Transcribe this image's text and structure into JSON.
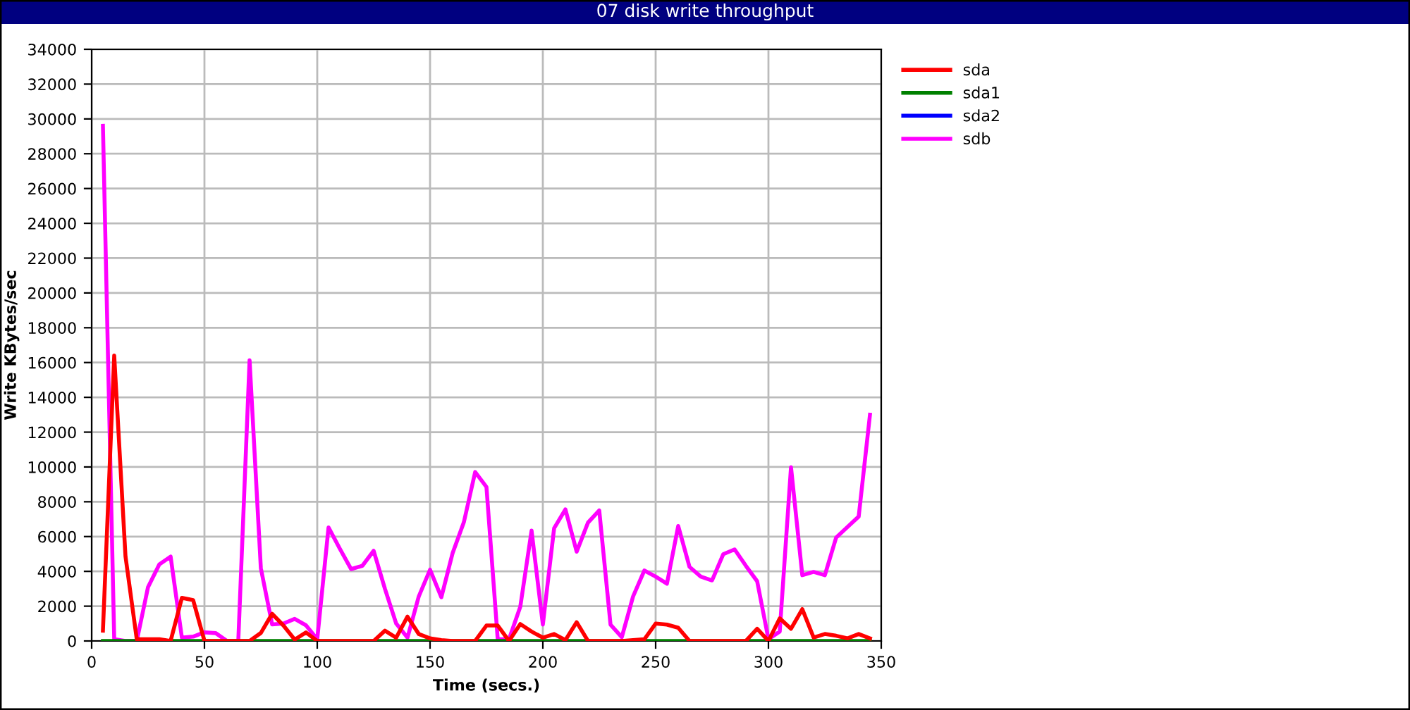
{
  "chart_data": {
    "type": "line",
    "title": "07 disk write throughput",
    "xlabel": "Time (secs.)",
    "ylabel": "Write KBytes/sec",
    "x": [
      5,
      10,
      15,
      20,
      25,
      30,
      35,
      40,
      45,
      50,
      55,
      60,
      65,
      70,
      75,
      80,
      85,
      90,
      95,
      100,
      105,
      110,
      115,
      120,
      125,
      130,
      135,
      140,
      145,
      150,
      155,
      160,
      165,
      170,
      175,
      180,
      185,
      190,
      195,
      200,
      205,
      210,
      215,
      220,
      225,
      230,
      235,
      240,
      245,
      250,
      255,
      260,
      265,
      270,
      275,
      280,
      285,
      290,
      295,
      300,
      305,
      310,
      315,
      320,
      325,
      330,
      335,
      340,
      345
    ],
    "series": [
      {
        "name": "sda",
        "color": "#ff0000",
        "values": [
          590,
          16400,
          4860,
          100,
          100,
          100,
          0,
          2480,
          2350,
          0,
          0,
          0,
          0,
          0,
          460,
          1560,
          890,
          80,
          490,
          0,
          0,
          0,
          0,
          0,
          0,
          590,
          190,
          1400,
          400,
          150,
          50,
          0,
          0,
          0,
          890,
          890,
          0,
          970,
          540,
          190,
          400,
          50,
          1080,
          0,
          0,
          0,
          0,
          50,
          100,
          1000,
          940,
          760,
          0,
          0,
          0,
          0,
          0,
          0,
          700,
          0,
          1300,
          700,
          1830,
          200,
          400,
          300,
          150,
          400,
          150
        ]
      },
      {
        "name": "sda1",
        "color": "#008000",
        "values": [
          0,
          0,
          0,
          0,
          0,
          0,
          0,
          0,
          0,
          0,
          0,
          0,
          0,
          0,
          0,
          0,
          0,
          0,
          0,
          0,
          0,
          0,
          0,
          0,
          0,
          0,
          0,
          0,
          0,
          0,
          0,
          0,
          0,
          0,
          0,
          0,
          0,
          0,
          0,
          0,
          0,
          0,
          0,
          0,
          0,
          0,
          0,
          0,
          0,
          0,
          0,
          0,
          0,
          0,
          0,
          0,
          0,
          0,
          0,
          0,
          0,
          0,
          0,
          0,
          0,
          0,
          0,
          0,
          0
        ]
      },
      {
        "name": "sda2",
        "color": "#0000ff",
        "values": [
          null,
          null,
          null,
          null,
          null,
          null,
          null,
          null,
          null,
          null,
          null,
          null,
          null,
          null,
          null,
          null,
          null,
          null,
          null,
          null,
          null,
          null,
          null,
          null,
          null,
          null,
          null,
          null,
          null,
          null,
          null,
          null,
          null,
          null,
          null,
          null,
          null,
          null,
          null,
          null,
          null,
          null,
          null,
          null,
          null,
          null,
          null,
          null,
          null,
          null,
          null,
          null,
          null,
          null,
          null,
          null,
          null,
          null,
          null,
          null,
          null,
          null,
          null,
          null,
          null,
          null,
          null,
          null,
          null
        ]
      },
      {
        "name": "sdb",
        "color": "#ff00ff",
        "values": [
          29600,
          100,
          0,
          0,
          3100,
          4400,
          4850,
          190,
          250,
          500,
          450,
          0,
          0,
          16130,
          4180,
          950,
          1000,
          1270,
          900,
          100,
          6530,
          5300,
          4130,
          4320,
          5180,
          3000,
          1000,
          190,
          2560,
          4100,
          2510,
          5050,
          6830,
          9710,
          8850,
          100,
          100,
          1970,
          6340,
          940,
          6480,
          7560,
          5130,
          6800,
          7500,
          940,
          220,
          2560,
          4050,
          3700,
          3290,
          6610,
          4260,
          3700,
          3480,
          4990,
          5260,
          4320,
          3430,
          100,
          540,
          9990,
          3780,
          3970,
          3780,
          5940,
          6550,
          7150,
          13000
        ]
      }
    ],
    "xlim": [
      0,
      350
    ],
    "xticks": [
      0,
      50,
      100,
      150,
      200,
      250,
      300,
      350
    ],
    "ylim": [
      0,
      34000
    ],
    "yticks": [
      0,
      2000,
      4000,
      6000,
      8000,
      10000,
      12000,
      14000,
      16000,
      18000,
      20000,
      22000,
      24000,
      26000,
      28000,
      30000,
      32000,
      34000
    ],
    "grid": true,
    "legend": "top right",
    "marker": "none",
    "line_style": "solid"
  }
}
